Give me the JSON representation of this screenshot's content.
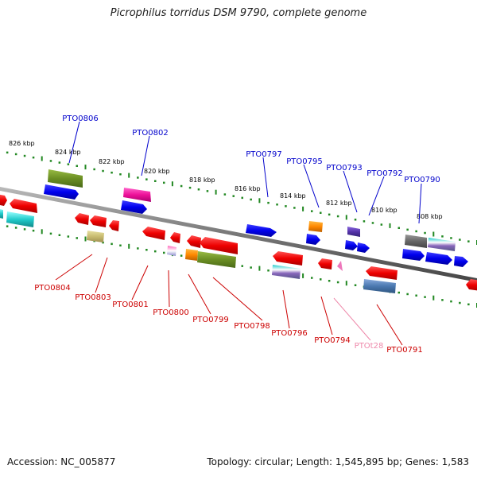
{
  "title": "Picrophilus torridus DSM 9790, complete genome",
  "footer": {
    "accession": "Accession: NC_005877",
    "topology": "Topology: circular; Length: 1,545,895 bp; Genes: 1,583"
  },
  "colors": {
    "backbone": "#7a7a7a",
    "tick": "#228822",
    "upper_label": "#0000cc",
    "lower_label": "#cc0000",
    "rna_label": "#ee88aa"
  },
  "scale_labels": [
    "826 kbp",
    "824 kbp",
    "822 kbp",
    "820 kbp",
    "818 kbp",
    "816 kbp",
    "814 kbp",
    "812 kbp",
    "810 kbp",
    "808 kbp"
  ],
  "upper_labels": [
    "PTO0806",
    "PTO0802",
    "PTO0797",
    "PTO0795",
    "PTO0793",
    "PTO0792",
    "PTO0790"
  ],
  "lower_labels": [
    "PTO0804",
    "PTO0803",
    "PTO0801",
    "PTO0800",
    "PTO0799",
    "PTO0798",
    "PTO0796",
    "PTO0794",
    "PTOt28",
    "PTO0791"
  ]
}
